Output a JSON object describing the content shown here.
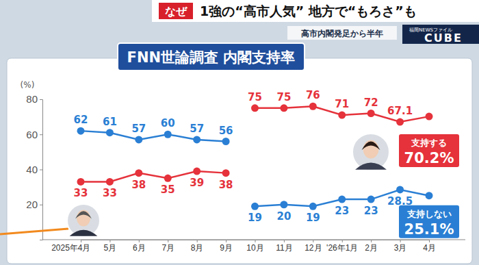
{
  "chart_data": {
    "type": "line",
    "title": "FNN世論調査 内閣支持率",
    "subtitle": "高市内閣発足から半年",
    "annotations": {
      "tag": "なぜ",
      "headline": "1強の“高市人気” 地方で“もろさ”も",
      "logo_top": "福岡NEWSファイル",
      "logo": "CUBE"
    },
    "ylabel": "(%)",
    "categories": [
      "2025年4月",
      "5月",
      "6月",
      "7月",
      "8月",
      "9月",
      "10月",
      "11月",
      "12月",
      "'26年1月",
      "2月",
      "3月",
      "4月"
    ],
    "series": [
      {
        "color": "#e5323b",
        "marker": "circle",
        "values": [
          33,
          33,
          38,
          35,
          39,
          38,
          null,
          null,
          null,
          null,
          null,
          null,
          null
        ],
        "value_labels": [
          "33",
          "33",
          "38",
          "35",
          "39",
          "38",
          null,
          null,
          null,
          null,
          null,
          null,
          null
        ]
      },
      {
        "color": "#2a7fd4",
        "marker": "circle",
        "values": [
          62,
          61,
          57,
          60,
          57,
          56,
          null,
          null,
          null,
          null,
          null,
          null,
          null
        ],
        "value_labels": [
          "62",
          "61",
          "57",
          "60",
          "57",
          "56",
          null,
          null,
          null,
          null,
          null,
          null,
          null
        ]
      },
      {
        "name": "支持する",
        "color": "#e5323b",
        "marker": "circle",
        "values": [
          null,
          null,
          null,
          null,
          null,
          null,
          75,
          75,
          76,
          71,
          72,
          67.1,
          70.2
        ],
        "value_labels": [
          null,
          null,
          null,
          null,
          null,
          null,
          "75",
          "75",
          "76",
          "71",
          "72",
          "67.1",
          "70.2%"
        ]
      },
      {
        "name": "支持しない",
        "color": "#2a7fd4",
        "marker": "circle",
        "values": [
          null,
          null,
          null,
          null,
          null,
          null,
          19,
          20,
          19,
          23,
          23,
          28.5,
          25.1
        ],
        "value_labels": [
          null,
          null,
          null,
          null,
          null,
          null,
          "19",
          "20",
          "19",
          "23",
          "23",
          "28.5",
          "25.1%"
        ]
      }
    ],
    "ylim": [
      0,
      80
    ],
    "yticks": [
      20,
      40,
      60,
      80
    ],
    "grid": false,
    "data_labels": true
  }
}
